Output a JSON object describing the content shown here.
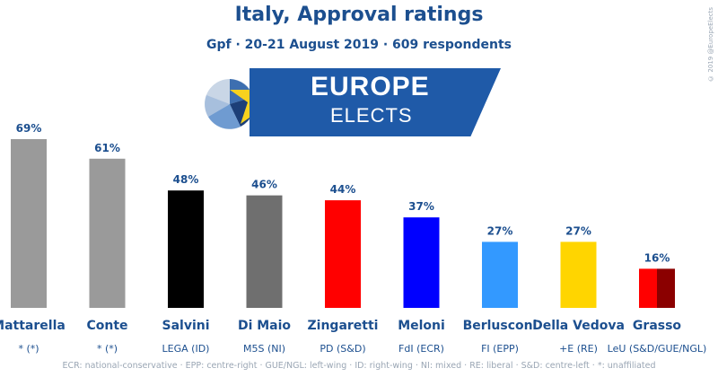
{
  "header": {
    "title": "Italy, Approval ratings",
    "subtitle": "Gpf · 20-21 August 2019 · 609 respondents",
    "copyright": "© 2019 @EuropeElects"
  },
  "logo": {
    "word1": "EUROPE",
    "word2": "ELECTS"
  },
  "footnote": "ECR: national-conservative · EPP: centre-right · GUE/NGL: left-wing · ID: right-wing · NI: mixed · RE: liberal · S&D: centre-left · *: unaffiliated",
  "chart_data": {
    "type": "bar",
    "categories": [
      "Mattarella",
      "Conte",
      "Salvini",
      "Di Maio",
      "Zingaretti",
      "Meloni",
      "Berlusconi",
      "Della Vedova",
      "Grasso"
    ],
    "parties": [
      "* (*)",
      "* (*)",
      "LEGA (ID)",
      "M5S (NI)",
      "PD (S&D)",
      "FdI (ECR)",
      "FI (EPP)",
      "+E (RE)",
      "LeU (S&D/GUE/NGL)"
    ],
    "values": [
      69,
      61,
      48,
      46,
      44,
      37,
      27,
      27,
      16
    ],
    "value_labels": [
      "69%",
      "61%",
      "48%",
      "46%",
      "44%",
      "37%",
      "27%",
      "27%",
      "16%"
    ],
    "colors": [
      "#9a9a9a",
      "#9a9a9a",
      "#000000",
      "#6f6f6f",
      "#ff0000",
      "#0000ff",
      "#3399ff",
      "#ffd500",
      "#ff0000"
    ],
    "split_colors": {
      "8": [
        "#ff0000",
        "#8b0000"
      ]
    },
    "ylim": [
      0,
      100
    ],
    "grid": false,
    "legend": "none"
  }
}
